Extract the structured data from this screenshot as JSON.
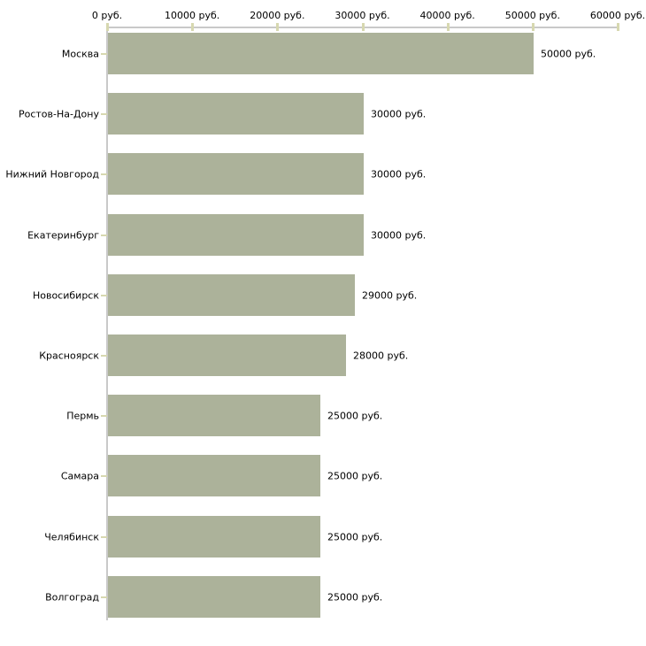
{
  "chart_data": {
    "type": "bar",
    "orientation": "horizontal",
    "unit": "руб.",
    "categories": [
      "Москва",
      "Ростов-На-Дону",
      "Нижний Новгород",
      "Екатеринбург",
      "Новосибирск",
      "Красноярск",
      "Пермь",
      "Самара",
      "Челябинск",
      "Волгоград"
    ],
    "values": [
      50000,
      30000,
      30000,
      30000,
      29000,
      28000,
      25000,
      25000,
      25000,
      25000
    ],
    "value_labels": [
      "50000 руб.",
      "30000 руб.",
      "30000 руб.",
      "30000 руб.",
      "29000 руб.",
      "28000 руб.",
      "25000 руб.",
      "25000 руб.",
      "25000 руб.",
      "25000 руб."
    ],
    "x_axis": {
      "position": "top",
      "range": [
        0,
        60000
      ],
      "ticks": [
        0,
        10000,
        20000,
        30000,
        40000,
        50000,
        60000
      ],
      "tick_labels": [
        "0 руб.",
        "10000 руб.",
        "20000 руб.",
        "30000 руб.",
        "40000 руб.",
        "50000 руб.",
        "60000 руб."
      ]
    },
    "grid": false,
    "legend": null,
    "colors": {
      "bar": "#acb29a",
      "axis_line": "#c9c9c9",
      "tick": "#d7d8b0",
      "text": "#000000",
      "background": "#ffffff"
    }
  }
}
